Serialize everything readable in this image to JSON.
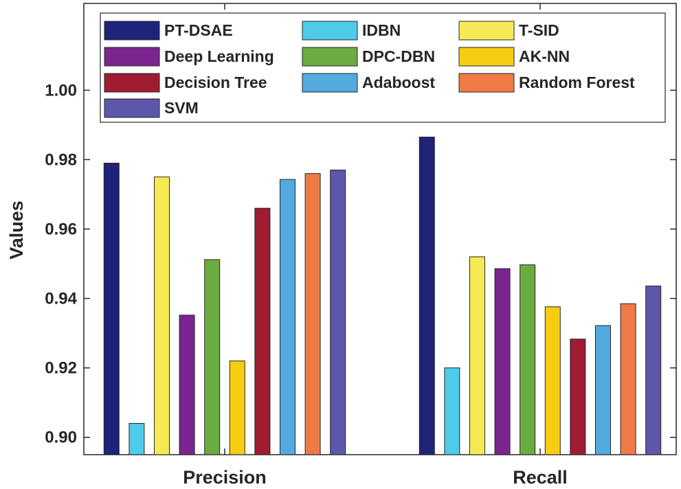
{
  "chart_data": {
    "type": "bar",
    "title": "",
    "xlabel": "",
    "ylabel": "Values",
    "ylim": [
      0.895,
      1.025
    ],
    "yticks": [
      "0.90",
      "0.92",
      "0.94",
      "0.96",
      "0.98",
      "1.00"
    ],
    "ytick_values": [
      0.9,
      0.92,
      0.94,
      0.96,
      0.98,
      1.0
    ],
    "categories": [
      "Precision",
      "Recall"
    ],
    "legend_position": "top",
    "series": [
      {
        "name": "PT-DSAE",
        "color": "#1f237a",
        "values": [
          0.979,
          0.9865
        ]
      },
      {
        "name": "IDBN",
        "color": "#4ecbe9",
        "values": [
          0.904,
          0.92
        ]
      },
      {
        "name": "T-SID",
        "color": "#f5ea54",
        "values": [
          0.975,
          0.952
        ]
      },
      {
        "name": "Deep Learning",
        "color": "#7a2590",
        "values": [
          0.9352,
          0.9486
        ]
      },
      {
        "name": "DPC-DBN",
        "color": "#6aac3f",
        "values": [
          0.9512,
          0.9497
        ]
      },
      {
        "name": "AK-NN",
        "color": "#f7cd12",
        "values": [
          0.922,
          0.9376
        ]
      },
      {
        "name": "Decision Tree",
        "color": "#a01c33",
        "values": [
          0.966,
          0.9283
        ]
      },
      {
        "name": "Adaboost",
        "color": "#53aadf",
        "values": [
          0.9743,
          0.9322
        ]
      },
      {
        "name": "Random Forest",
        "color": "#ef7a45",
        "values": [
          0.976,
          0.9385
        ]
      },
      {
        "name": "SVM",
        "color": "#5c57a9",
        "values": [
          0.977,
          0.9436
        ]
      }
    ]
  }
}
